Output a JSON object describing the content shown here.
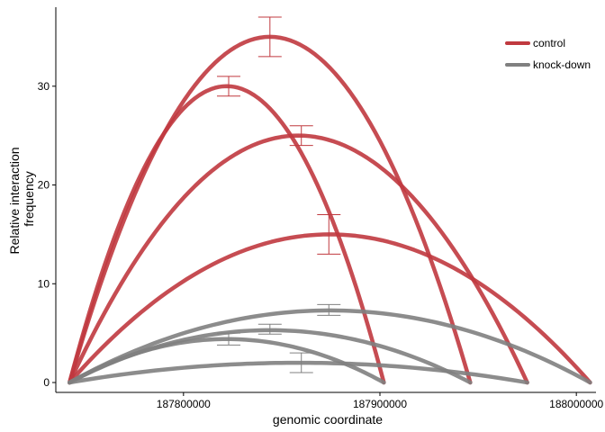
{
  "chart_data": {
    "type": "line",
    "xlabel": "genomic coordinate",
    "ylabel_lines": [
      "Relative interaction",
      "frequency"
    ],
    "xlim": [
      187735000,
      188010000
    ],
    "ylim": [
      -1,
      38
    ],
    "x_ticks": [
      187800000,
      187900000,
      188000000
    ],
    "x_tick_labels": [
      "187800000",
      "187900000",
      "188000000"
    ],
    "y_ticks": [
      0,
      10,
      20,
      30
    ],
    "y_tick_labels": [
      "0",
      "10",
      "20",
      "30"
    ],
    "grid": false,
    "legend": {
      "position": "top-right"
    },
    "series": [
      {
        "name": "control",
        "color": "#c0393f",
        "arcs": [
          {
            "start": 187742000,
            "end": 187902000,
            "peak": 30,
            "peak_x": 187823000,
            "err": [
              29,
              31
            ]
          },
          {
            "start": 187742000,
            "end": 187946000,
            "peak": 35,
            "peak_x": 187844000,
            "err": [
              33,
              37
            ]
          },
          {
            "start": 187742000,
            "end": 187975000,
            "peak": 25,
            "peak_x": 187860000,
            "err": [
              24,
              26
            ]
          },
          {
            "start": 187742000,
            "end": 188007000,
            "peak": 15,
            "peak_x": 187874000,
            "err": [
              13,
              17
            ]
          }
        ]
      },
      {
        "name": "knock-down",
        "color": "#808080",
        "arcs": [
          {
            "start": 187742000,
            "end": 187902000,
            "peak": 4.4,
            "peak_x": 187823000,
            "err": [
              3.8,
              5.0
            ]
          },
          {
            "start": 187742000,
            "end": 187946000,
            "peak": 5.3,
            "peak_x": 187844000,
            "err": [
              4.9,
              5.9
            ]
          },
          {
            "start": 187742000,
            "end": 187975000,
            "peak": 2.0,
            "peak_x": 187860000,
            "err": [
              1.0,
              3.0
            ]
          },
          {
            "start": 187742000,
            "end": 188007000,
            "peak": 7.3,
            "peak_x": 187874000,
            "err": [
              6.8,
              7.9
            ]
          }
        ]
      }
    ]
  }
}
